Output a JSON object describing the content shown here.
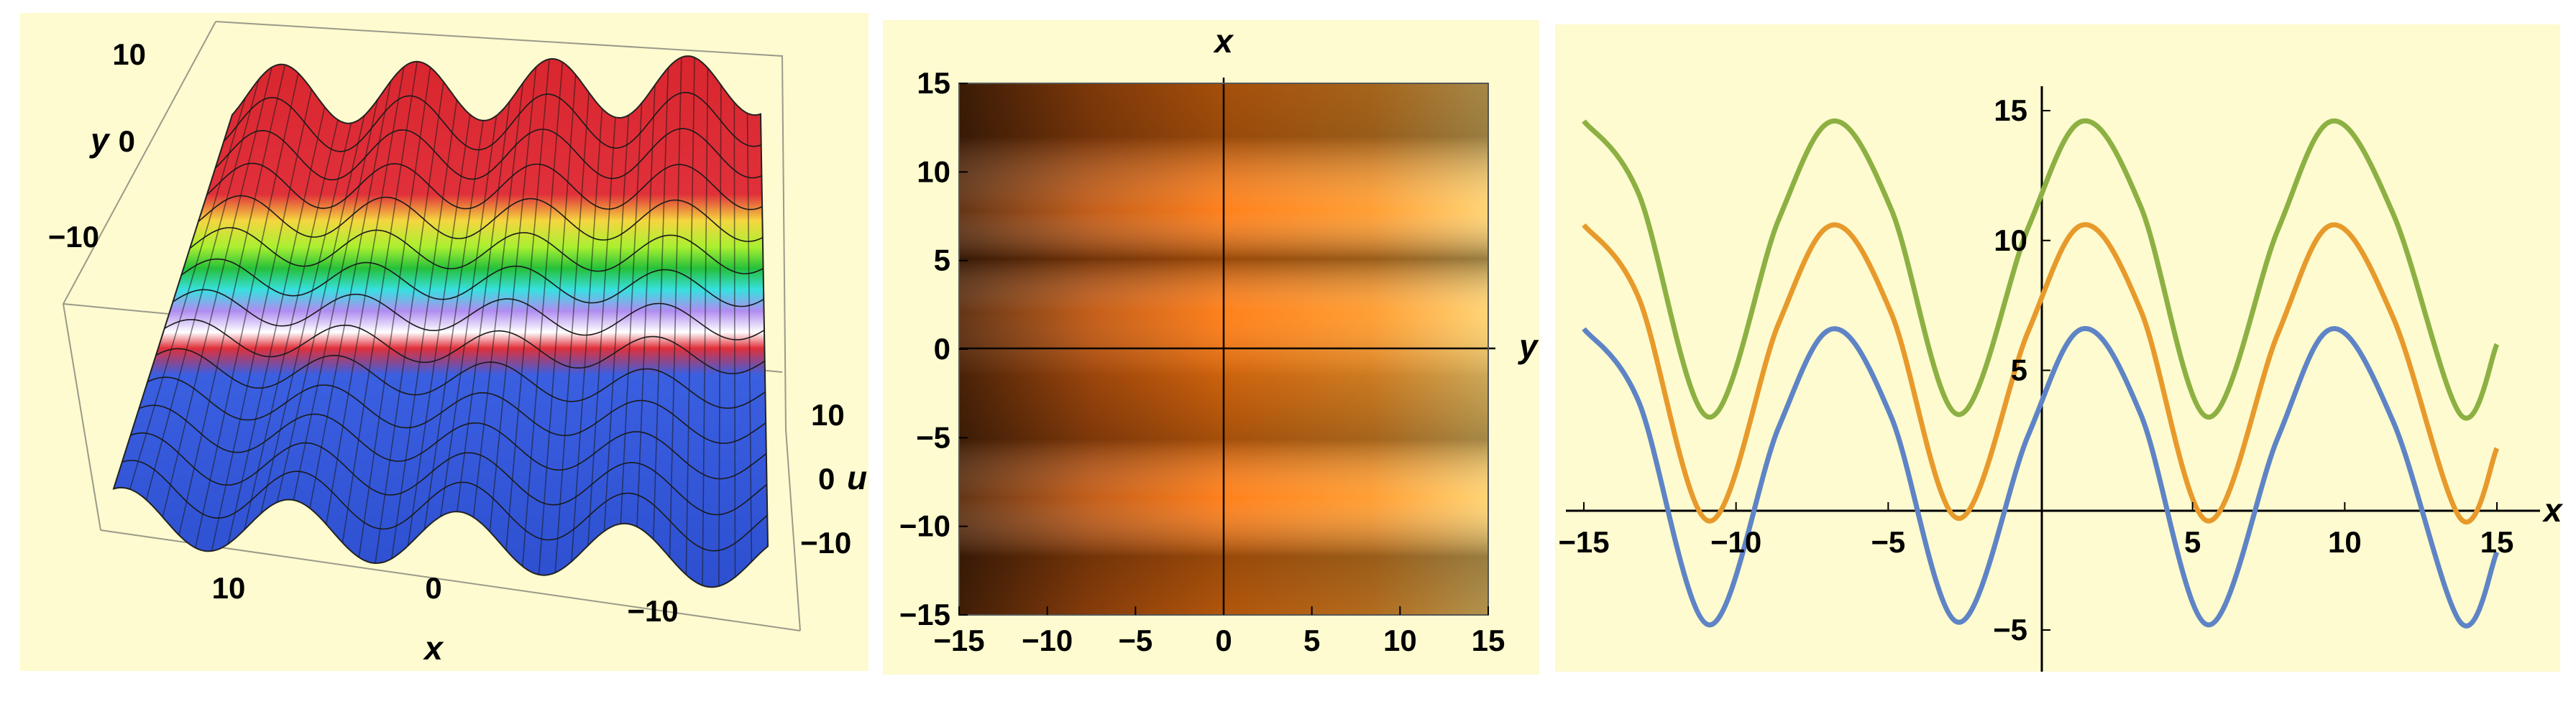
{
  "chart_data": [
    {
      "type": "surface",
      "xlabel": "x",
      "ylabel": "y",
      "zlabel": "u",
      "x_ticks": [
        "10",
        "0",
        "−10"
      ],
      "y_ticks": [
        "10",
        "0",
        "−10"
      ],
      "z_ticks": [
        "10",
        "0",
        "−10"
      ],
      "xlim": [
        -15,
        15
      ],
      "ylim": [
        -15,
        15
      ],
      "zlim": [
        -15,
        15
      ],
      "colors": [
        "#3a5fe0",
        "#e0303a",
        "#ffffff",
        "#b08cf0",
        "#37e0e0",
        "#25c03a",
        "#a8f030",
        "#f5d640",
        "#e0303a"
      ]
    },
    {
      "type": "heatmap",
      "xlabel": "x",
      "ylabel": "y",
      "x_ticks": [
        "−15",
        "−10",
        "−5",
        "0",
        "5",
        "10",
        "15"
      ],
      "y_ticks": [
        "15",
        "10",
        "5",
        "0",
        "−5",
        "−10",
        "−15"
      ],
      "xlim": [
        -15,
        15
      ],
      "ylim": [
        -15,
        15
      ],
      "colors": [
        "#4a1e08",
        "#ff7a10",
        "#ffd26e"
      ]
    },
    {
      "type": "line",
      "xlabel": "x",
      "x_ticks": [
        "−15",
        "−10",
        "−5",
        "5",
        "10",
        "15"
      ],
      "y_ticks": [
        "15",
        "10",
        "5",
        "−5"
      ],
      "xlim": [
        -15,
        15
      ],
      "ylim": [
        -5,
        15
      ],
      "series": [
        {
          "color": "#8db043",
          "x": [
            -15,
            -13.2,
            -10.9,
            -8.6,
            -6.8,
            -4.9,
            -2.7,
            -0.4,
            1.4,
            3.3,
            5.5,
            7.8,
            9.6,
            11.6,
            13.8,
            15
          ],
          "y": [
            14.6,
            11.8,
            3.2,
            10.8,
            14.6,
            11.2,
            3.3,
            10.5,
            14.6,
            11.3,
            3.2,
            10.4,
            14.6,
            11.0,
            3.3,
            6.0
          ]
        },
        {
          "color": "#e79a2b",
          "x": [
            -15,
            -13.2,
            -10.9,
            -8.6,
            -6.8,
            -4.9,
            -2.7,
            -0.4,
            1.4,
            3.3,
            5.5,
            7.8,
            9.6,
            11.6,
            13.8,
            15
          ],
          "y": [
            10.6,
            7.8,
            -0.8,
            6.8,
            10.6,
            7.2,
            -0.7,
            6.5,
            10.6,
            7.3,
            -0.8,
            6.4,
            10.6,
            7.0,
            -0.7,
            2.0
          ]
        },
        {
          "color": "#5e84c6",
          "x": [
            -15,
            -13.2,
            -10.9,
            -8.6,
            -6.8,
            -4.9,
            -2.7,
            -0.4,
            1.4,
            3.3,
            5.5,
            7.8,
            9.6,
            11.6,
            13.8,
            15
          ],
          "y": [
            6.6,
            3.8,
            -4.8,
            2.8,
            6.6,
            3.2,
            -4.7,
            2.5,
            6.6,
            3.3,
            -4.8,
            2.4,
            6.6,
            3.0,
            -4.7,
            -2.0
          ]
        }
      ]
    }
  ]
}
